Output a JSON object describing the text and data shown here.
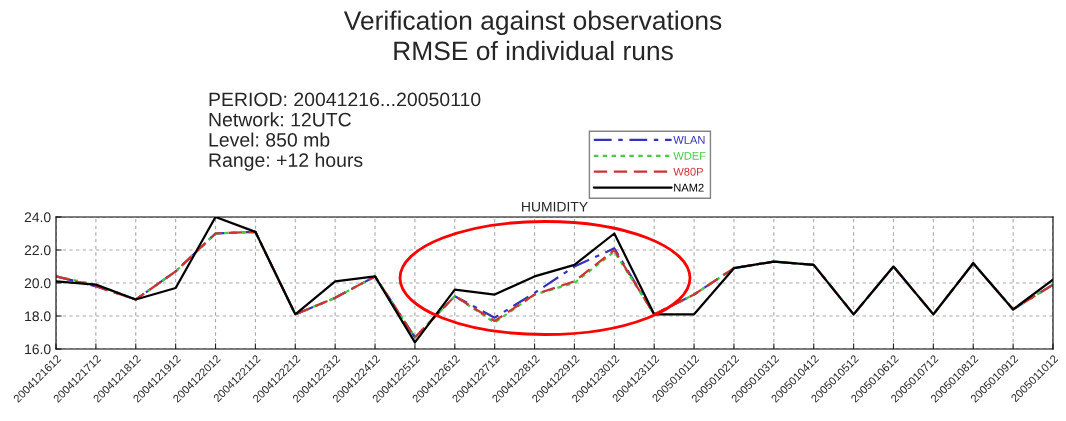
{
  "chart_data": {
    "type": "line",
    "title": "Verification against observations\nRMSE of individual runs",
    "subtitle": "HUMIDITY",
    "annotations": [
      "PERIOD: 20041216...20050110\nNetwork: 12UTC\nLevel: 850 mb\nRange: +12 hours"
    ],
    "categories": [
      "2004121612",
      "2004121712",
      "2004121812",
      "2004121912",
      "2004122012",
      "2004122112",
      "2004122212",
      "2004122312",
      "2004122412",
      "2004122512",
      "2004122612",
      "2004122712",
      "2004122812",
      "2004122912",
      "2004123012",
      "2004123112",
      "2005010112",
      "2005010212",
      "2005010312",
      "2005010412",
      "2005010512",
      "2005010612",
      "2005010712",
      "2005010812",
      "2005010912",
      "2005011012"
    ],
    "series": [
      {
        "name": "WLAN",
        "color": "#3333bb",
        "line_style": "dashdot",
        "values": [
          20.4,
          19.8,
          19.0,
          20.7,
          23.0,
          23.1,
          18.1,
          19.1,
          20.4,
          16.7,
          19.2,
          17.9,
          19.4,
          21.0,
          22.1,
          18.1,
          19.3,
          20.9,
          21.3,
          21.1,
          18.1,
          21.0,
          18.1,
          21.2,
          18.4,
          19.9
        ]
      },
      {
        "name": "WDEF",
        "color": "#44cc44",
        "line_style": "dotted",
        "values": [
          20.4,
          19.9,
          19.0,
          20.7,
          23.0,
          23.1,
          18.1,
          19.1,
          20.4,
          16.7,
          19.2,
          17.6,
          19.3,
          20.0,
          21.9,
          18.1,
          19.3,
          20.9,
          21.3,
          21.1,
          18.1,
          21.0,
          18.1,
          21.2,
          18.4,
          19.9
        ]
      },
      {
        "name": "W80P",
        "color": "#cc3333",
        "line_style": "dashed",
        "values": [
          20.4,
          19.8,
          19.0,
          20.7,
          23.0,
          23.1,
          18.1,
          19.1,
          20.4,
          16.7,
          19.2,
          17.7,
          19.3,
          20.1,
          22.0,
          18.1,
          19.3,
          20.9,
          21.3,
          21.1,
          18.1,
          21.0,
          18.1,
          21.2,
          18.4,
          19.9
        ]
      },
      {
        "name": "NAM2",
        "color": "#000000",
        "line_style": "solid",
        "values": [
          20.1,
          19.9,
          19.0,
          19.7,
          24.0,
          23.1,
          18.1,
          20.1,
          20.4,
          16.4,
          19.6,
          19.3,
          20.4,
          21.1,
          23.0,
          18.1,
          18.1,
          20.9,
          21.3,
          21.1,
          18.1,
          21.0,
          18.1,
          21.2,
          18.4,
          20.2
        ]
      }
    ],
    "ylim": [
      16,
      24
    ],
    "yticks": [
      {
        "value": 16,
        "label": "16.0"
      },
      {
        "value": 18,
        "label": "18.0"
      },
      {
        "value": 20,
        "label": "20.0"
      },
      {
        "value": 22,
        "label": "22.0"
      },
      {
        "value": 24,
        "label": "24.0"
      }
    ],
    "grid": true,
    "legend": "top right"
  }
}
